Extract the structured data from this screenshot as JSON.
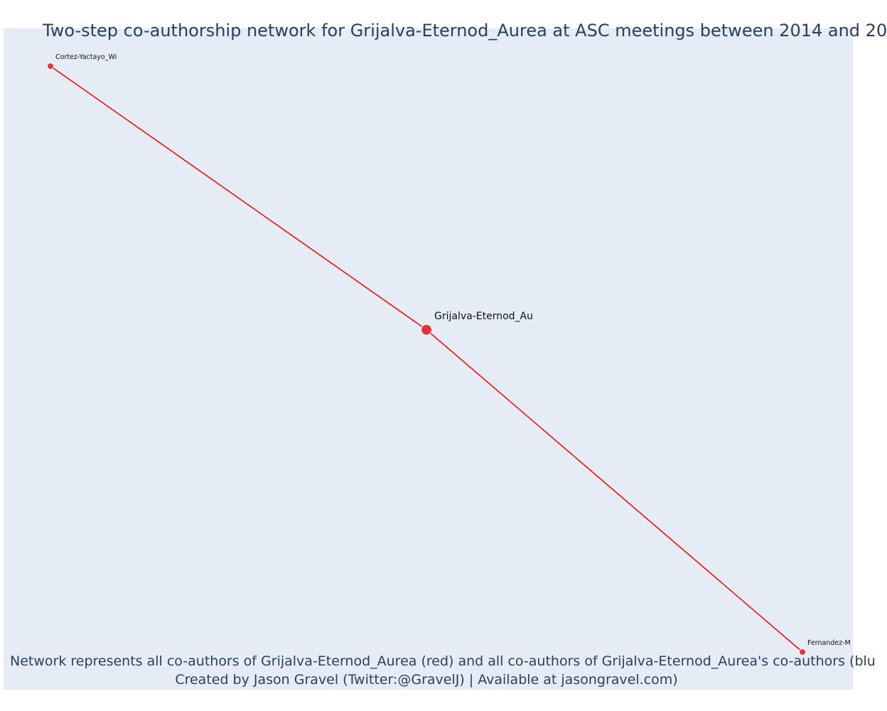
{
  "title": "Two-step co-authorship network for Grijalva-Eternod_Aurea at ASC meetings between 2014 and 20",
  "caption": {
    "line1": "Network represents all co-authors of Grijalva-Eternod_Aurea (red) and all co-authors of Grijalva-Eternod_Aurea's co-authors (blu",
    "line2": "Created by Jason Gravel (Twitter:@GravelJ) | Available at jasongravel.com)"
  },
  "colors": {
    "edge": "#ff0000",
    "node": "#e8313a",
    "node_stroke": "#ffffff",
    "background": "#e5ecf6",
    "text": "#2a3f5f"
  },
  "chart_data": {
    "type": "network",
    "nodes": [
      {
        "id": "Cortez-Yactayo_Wi",
        "label": "Cortez-Yactayo_Wi",
        "group": "co-author",
        "x": 0,
        "y": 1
      },
      {
        "id": "Grijalva-Eternod_Au",
        "label": "Grijalva-Eternod_Au",
        "group": "focal",
        "x": 0.5,
        "y": 0.55
      },
      {
        "id": "Fernandez-M",
        "label": "Fernandez-M",
        "group": "co-author",
        "x": 1,
        "y": 0
      }
    ],
    "edges": [
      {
        "source": "Cortez-Yactayo_Wi",
        "target": "Grijalva-Eternod_Au"
      },
      {
        "source": "Grijalva-Eternod_Au",
        "target": "Fernandez-M"
      }
    ],
    "title": "Two-step co-authorship network for Grijalva-Eternod_Aurea at ASC meetings between 2014 and 20",
    "grid": false,
    "legend": "none"
  }
}
